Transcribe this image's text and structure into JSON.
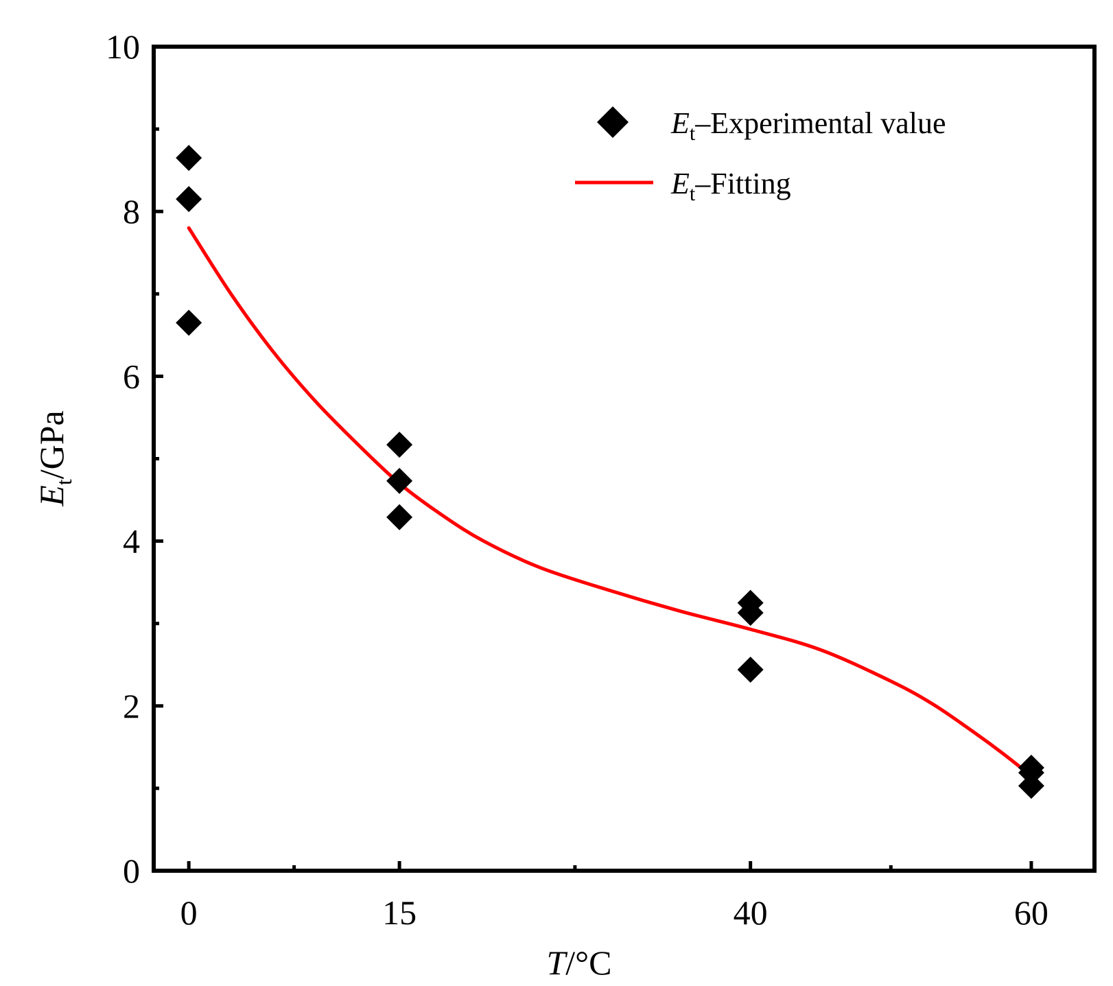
{
  "chart_data": {
    "type": "scatter",
    "title": "",
    "xlabel": {
      "symbol": "T",
      "unit": "/°C"
    },
    "ylabel": {
      "symbol": "E",
      "subscript": "t",
      "unit": "/GPa"
    },
    "xlim": [
      -2.5,
      64.5
    ],
    "ylim": [
      0,
      10
    ],
    "x_ticks": [
      0,
      15,
      40,
      60
    ],
    "x_tick_labels": [
      "0",
      "15",
      "40",
      "60"
    ],
    "x_minor_ticks": [
      7.5,
      27.5,
      50
    ],
    "y_ticks": [
      0,
      2,
      4,
      6,
      8,
      10
    ],
    "y_tick_labels": [
      "0",
      "2",
      "4",
      "6",
      "8",
      "10"
    ],
    "y_minor_ticks": [
      1,
      3,
      5,
      7,
      9
    ],
    "grid": false,
    "legend_position": "top-right",
    "colors": {
      "points": "#000000",
      "fit": "#ff0000",
      "axes": "#000000"
    },
    "series": [
      {
        "name": "Experimental value",
        "legend_symbol": "E",
        "legend_subscript": "t",
        "legend_text": "–Experimental value",
        "kind": "scatter",
        "marker": "diamond",
        "points": [
          {
            "x": 0,
            "y": 8.65
          },
          {
            "x": 0,
            "y": 8.15
          },
          {
            "x": 0,
            "y": 6.65
          },
          {
            "x": 15,
            "y": 5.17
          },
          {
            "x": 15,
            "y": 4.73
          },
          {
            "x": 15,
            "y": 4.29
          },
          {
            "x": 40,
            "y": 3.25
          },
          {
            "x": 40,
            "y": 3.13
          },
          {
            "x": 40,
            "y": 2.44
          },
          {
            "x": 60,
            "y": 1.25
          },
          {
            "x": 60,
            "y": 1.19
          },
          {
            "x": 60,
            "y": 1.03
          }
        ]
      },
      {
        "name": "Fitting",
        "legend_symbol": "E",
        "legend_subscript": "t",
        "legend_text": "–Fitting",
        "kind": "line",
        "points": [
          {
            "x": 0,
            "y": 7.8
          },
          {
            "x": 3,
            "y": 7.0
          },
          {
            "x": 6,
            "y": 6.3
          },
          {
            "x": 9,
            "y": 5.7
          },
          {
            "x": 12,
            "y": 5.18
          },
          {
            "x": 15,
            "y": 4.7
          },
          {
            "x": 18,
            "y": 4.32
          },
          {
            "x": 21,
            "y": 4.0
          },
          {
            "x": 25,
            "y": 3.68
          },
          {
            "x": 30,
            "y": 3.4
          },
          {
            "x": 35,
            "y": 3.15
          },
          {
            "x": 40,
            "y": 2.93
          },
          {
            "x": 45,
            "y": 2.68
          },
          {
            "x": 50,
            "y": 2.3
          },
          {
            "x": 53,
            "y": 2.02
          },
          {
            "x": 56,
            "y": 1.67
          },
          {
            "x": 58,
            "y": 1.42
          },
          {
            "x": 60,
            "y": 1.15
          }
        ]
      }
    ]
  }
}
